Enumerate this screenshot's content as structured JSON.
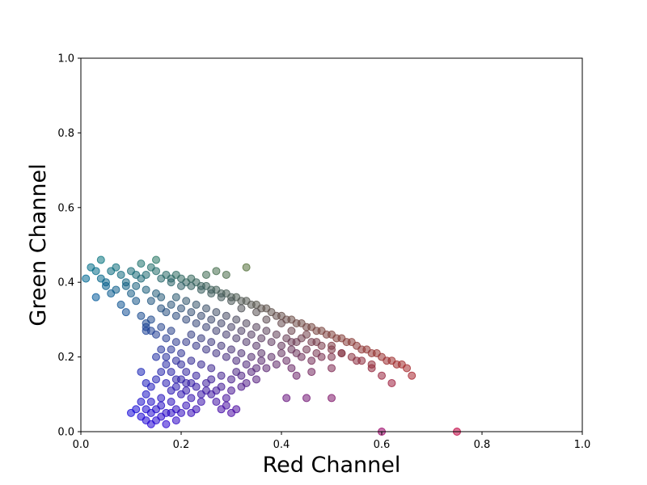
{
  "chart_data": {
    "type": "scatter",
    "title": "",
    "xlabel": "Red Channel",
    "ylabel": "Green Channel",
    "xlim": [
      0,
      1
    ],
    "ylim": [
      0,
      1
    ],
    "xticks": [
      0.0,
      0.2,
      0.4,
      0.6,
      0.8,
      1.0
    ],
    "yticks": [
      0.0,
      0.2,
      0.4,
      0.6,
      0.8,
      1.0
    ],
    "xtick_labels": [
      "0.0",
      "0.2",
      "0.4",
      "0.6",
      "0.8",
      "1.0"
    ],
    "ytick_labels": [
      "0.0",
      "0.2",
      "0.4",
      "0.6",
      "0.8",
      "1.0"
    ],
    "grid": false,
    "point_color_rule": "rgb(red, green, blue) of each sample",
    "series": [
      {
        "points": [
          [
            0.01,
            0.41
          ],
          [
            0.02,
            0.44
          ],
          [
            0.03,
            0.43
          ],
          [
            0.04,
            0.41
          ],
          [
            0.05,
            0.4
          ],
          [
            0.06,
            0.43
          ],
          [
            0.07,
            0.44
          ],
          [
            0.08,
            0.42
          ],
          [
            0.09,
            0.4
          ],
          [
            0.1,
            0.43
          ],
          [
            0.11,
            0.42
          ],
          [
            0.12,
            0.41
          ],
          [
            0.13,
            0.42
          ],
          [
            0.14,
            0.44
          ],
          [
            0.15,
            0.43
          ],
          [
            0.16,
            0.41
          ],
          [
            0.17,
            0.42
          ],
          [
            0.18,
            0.41
          ],
          [
            0.19,
            0.42
          ],
          [
            0.2,
            0.41
          ],
          [
            0.21,
            0.4
          ],
          [
            0.22,
            0.41
          ],
          [
            0.23,
            0.4
          ],
          [
            0.24,
            0.39
          ],
          [
            0.25,
            0.39
          ],
          [
            0.26,
            0.38
          ],
          [
            0.27,
            0.38
          ],
          [
            0.28,
            0.37
          ],
          [
            0.29,
            0.37
          ],
          [
            0.3,
            0.36
          ],
          [
            0.31,
            0.36
          ],
          [
            0.32,
            0.35
          ],
          [
            0.33,
            0.35
          ],
          [
            0.34,
            0.34
          ],
          [
            0.35,
            0.34
          ],
          [
            0.36,
            0.33
          ],
          [
            0.37,
            0.33
          ],
          [
            0.38,
            0.32
          ],
          [
            0.39,
            0.31
          ],
          [
            0.4,
            0.31
          ],
          [
            0.41,
            0.3
          ],
          [
            0.42,
            0.3
          ],
          [
            0.43,
            0.29
          ],
          [
            0.44,
            0.29
          ],
          [
            0.45,
            0.28
          ],
          [
            0.46,
            0.28
          ],
          [
            0.47,
            0.27
          ],
          [
            0.48,
            0.27
          ],
          [
            0.49,
            0.26
          ],
          [
            0.5,
            0.26
          ],
          [
            0.51,
            0.25
          ],
          [
            0.52,
            0.25
          ],
          [
            0.53,
            0.24
          ],
          [
            0.54,
            0.24
          ],
          [
            0.55,
            0.23
          ],
          [
            0.56,
            0.22
          ],
          [
            0.57,
            0.22
          ],
          [
            0.58,
            0.21
          ],
          [
            0.59,
            0.21
          ],
          [
            0.6,
            0.2
          ],
          [
            0.61,
            0.19
          ],
          [
            0.62,
            0.19
          ],
          [
            0.63,
            0.18
          ],
          [
            0.64,
            0.18
          ],
          [
            0.65,
            0.17
          ],
          [
            0.66,
            0.15
          ],
          [
            0.62,
            0.13
          ],
          [
            0.6,
            0.15
          ],
          [
            0.58,
            0.17
          ],
          [
            0.55,
            0.19
          ],
          [
            0.52,
            0.21
          ],
          [
            0.5,
            0.23
          ],
          [
            0.47,
            0.24
          ],
          [
            0.45,
            0.26
          ],
          [
            0.42,
            0.27
          ],
          [
            0.4,
            0.29
          ],
          [
            0.37,
            0.3
          ],
          [
            0.35,
            0.32
          ],
          [
            0.32,
            0.33
          ],
          [
            0.3,
            0.35
          ],
          [
            0.28,
            0.36
          ],
          [
            0.26,
            0.37
          ],
          [
            0.24,
            0.38
          ],
          [
            0.22,
            0.39
          ],
          [
            0.2,
            0.39
          ],
          [
            0.18,
            0.4
          ],
          [
            0.33,
            0.44
          ],
          [
            0.29,
            0.42
          ],
          [
            0.27,
            0.43
          ],
          [
            0.25,
            0.42
          ],
          [
            0.15,
            0.46
          ],
          [
            0.12,
            0.45
          ],
          [
            0.04,
            0.46
          ],
          [
            0.03,
            0.36
          ],
          [
            0.06,
            0.37
          ],
          [
            0.08,
            0.34
          ],
          [
            0.09,
            0.32
          ],
          [
            0.12,
            0.31
          ],
          [
            0.14,
            0.3
          ],
          [
            0.13,
            0.29
          ],
          [
            0.13,
            0.28
          ],
          [
            0.14,
            0.27
          ],
          [
            0.15,
            0.26
          ],
          [
            0.13,
            0.27
          ],
          [
            0.16,
            0.28
          ],
          [
            0.18,
            0.27
          ],
          [
            0.17,
            0.25
          ],
          [
            0.19,
            0.24
          ],
          [
            0.18,
            0.22
          ],
          [
            0.2,
            0.21
          ],
          [
            0.19,
            0.19
          ],
          [
            0.17,
            0.18
          ],
          [
            0.16,
            0.16
          ],
          [
            0.15,
            0.14
          ],
          [
            0.14,
            0.12
          ],
          [
            0.13,
            0.1
          ],
          [
            0.12,
            0.08
          ],
          [
            0.11,
            0.06
          ],
          [
            0.1,
            0.05
          ],
          [
            0.12,
            0.04
          ],
          [
            0.13,
            0.03
          ],
          [
            0.14,
            0.02
          ],
          [
            0.15,
            0.03
          ],
          [
            0.16,
            0.04
          ],
          [
            0.17,
            0.05
          ],
          [
            0.15,
            0.06
          ],
          [
            0.14,
            0.08
          ],
          [
            0.16,
            0.09
          ],
          [
            0.18,
            0.08
          ],
          [
            0.19,
            0.06
          ],
          [
            0.2,
            0.05
          ],
          [
            0.21,
            0.07
          ],
          [
            0.22,
            0.05
          ],
          [
            0.23,
            0.06
          ],
          [
            0.24,
            0.08
          ],
          [
            0.22,
            0.09
          ],
          [
            0.2,
            0.1
          ],
          [
            0.18,
            0.11
          ],
          [
            0.17,
            0.13
          ],
          [
            0.19,
            0.14
          ],
          [
            0.21,
            0.13
          ],
          [
            0.23,
            0.12
          ],
          [
            0.25,
            0.11
          ],
          [
            0.26,
            0.1
          ],
          [
            0.27,
            0.08
          ],
          [
            0.28,
            0.06
          ],
          [
            0.29,
            0.07
          ],
          [
            0.3,
            0.05
          ],
          [
            0.31,
            0.06
          ],
          [
            0.29,
            0.09
          ],
          [
            0.27,
            0.11
          ],
          [
            0.25,
            0.13
          ],
          [
            0.23,
            0.15
          ],
          [
            0.21,
            0.16
          ],
          [
            0.2,
            0.18
          ],
          [
            0.22,
            0.19
          ],
          [
            0.24,
            0.18
          ],
          [
            0.26,
            0.17
          ],
          [
            0.28,
            0.15
          ],
          [
            0.3,
            0.14
          ],
          [
            0.32,
            0.15
          ],
          [
            0.34,
            0.16
          ],
          [
            0.35,
            0.17
          ],
          [
            0.33,
            0.18
          ],
          [
            0.31,
            0.19
          ],
          [
            0.29,
            0.2
          ],
          [
            0.27,
            0.21
          ],
          [
            0.25,
            0.22
          ],
          [
            0.23,
            0.23
          ],
          [
            0.21,
            0.24
          ],
          [
            0.22,
            0.26
          ],
          [
            0.24,
            0.25
          ],
          [
            0.26,
            0.24
          ],
          [
            0.28,
            0.23
          ],
          [
            0.3,
            0.22
          ],
          [
            0.32,
            0.21
          ],
          [
            0.34,
            0.2
          ],
          [
            0.36,
            0.19
          ],
          [
            0.38,
            0.2
          ],
          [
            0.4,
            0.21
          ],
          [
            0.42,
            0.22
          ],
          [
            0.41,
            0.19
          ],
          [
            0.39,
            0.18
          ],
          [
            0.37,
            0.17
          ],
          [
            0.36,
            0.21
          ],
          [
            0.35,
            0.23
          ],
          [
            0.33,
            0.24
          ],
          [
            0.31,
            0.25
          ],
          [
            0.29,
            0.26
          ],
          [
            0.27,
            0.27
          ],
          [
            0.25,
            0.28
          ],
          [
            0.23,
            0.29
          ],
          [
            0.21,
            0.3
          ],
          [
            0.19,
            0.31
          ],
          [
            0.17,
            0.32
          ],
          [
            0.16,
            0.33
          ],
          [
            0.18,
            0.34
          ],
          [
            0.2,
            0.33
          ],
          [
            0.22,
            0.32
          ],
          [
            0.24,
            0.31
          ],
          [
            0.26,
            0.3
          ],
          [
            0.28,
            0.29
          ],
          [
            0.3,
            0.28
          ],
          [
            0.32,
            0.27
          ],
          [
            0.34,
            0.26
          ],
          [
            0.36,
            0.25
          ],
          [
            0.38,
            0.24
          ],
          [
            0.4,
            0.23
          ],
          [
            0.43,
            0.21
          ],
          [
            0.45,
            0.22
          ],
          [
            0.47,
            0.21
          ],
          [
            0.46,
            0.19
          ],
          [
            0.44,
            0.2
          ],
          [
            0.42,
            0.24
          ],
          [
            0.44,
            0.25
          ],
          [
            0.46,
            0.24
          ],
          [
            0.48,
            0.23
          ],
          [
            0.5,
            0.22
          ],
          [
            0.52,
            0.21
          ],
          [
            0.54,
            0.2
          ],
          [
            0.56,
            0.19
          ],
          [
            0.58,
            0.18
          ],
          [
            0.5,
            0.2
          ],
          [
            0.48,
            0.2
          ],
          [
            0.42,
            0.17
          ],
          [
            0.43,
            0.15
          ],
          [
            0.46,
            0.16
          ],
          [
            0.5,
            0.17
          ],
          [
            0.41,
            0.09
          ],
          [
            0.45,
            0.09
          ],
          [
            0.5,
            0.09
          ],
          [
            0.6,
            0.0
          ],
          [
            0.75,
            0.0
          ],
          [
            0.11,
            0.35
          ],
          [
            0.1,
            0.37
          ],
          [
            0.07,
            0.38
          ],
          [
            0.05,
            0.39
          ],
          [
            0.09,
            0.39
          ],
          [
            0.11,
            0.39
          ],
          [
            0.13,
            0.38
          ],
          [
            0.15,
            0.37
          ],
          [
            0.14,
            0.35
          ],
          [
            0.16,
            0.36
          ],
          [
            0.19,
            0.36
          ],
          [
            0.21,
            0.35
          ],
          [
            0.23,
            0.34
          ],
          [
            0.25,
            0.33
          ],
          [
            0.27,
            0.32
          ],
          [
            0.29,
            0.31
          ],
          [
            0.31,
            0.3
          ],
          [
            0.33,
            0.29
          ],
          [
            0.35,
            0.28
          ],
          [
            0.37,
            0.27
          ],
          [
            0.39,
            0.26
          ],
          [
            0.41,
            0.25
          ],
          [
            0.43,
            0.24
          ],
          [
            0.15,
            0.2
          ],
          [
            0.16,
            0.22
          ],
          [
            0.17,
            0.2
          ],
          [
            0.18,
            0.16
          ],
          [
            0.19,
            0.12
          ],
          [
            0.2,
            0.14
          ],
          [
            0.21,
            0.11
          ],
          [
            0.22,
            0.13
          ],
          [
            0.24,
            0.1
          ],
          [
            0.26,
            0.14
          ],
          [
            0.28,
            0.12
          ],
          [
            0.3,
            0.11
          ],
          [
            0.32,
            0.12
          ],
          [
            0.31,
            0.16
          ],
          [
            0.33,
            0.13
          ],
          [
            0.35,
            0.14
          ],
          [
            0.14,
            0.05
          ],
          [
            0.13,
            0.06
          ],
          [
            0.16,
            0.07
          ],
          [
            0.18,
            0.05
          ],
          [
            0.19,
            0.03
          ],
          [
            0.17,
            0.02
          ],
          [
            0.13,
            0.13
          ],
          [
            0.12,
            0.16
          ]
        ]
      }
    ]
  }
}
